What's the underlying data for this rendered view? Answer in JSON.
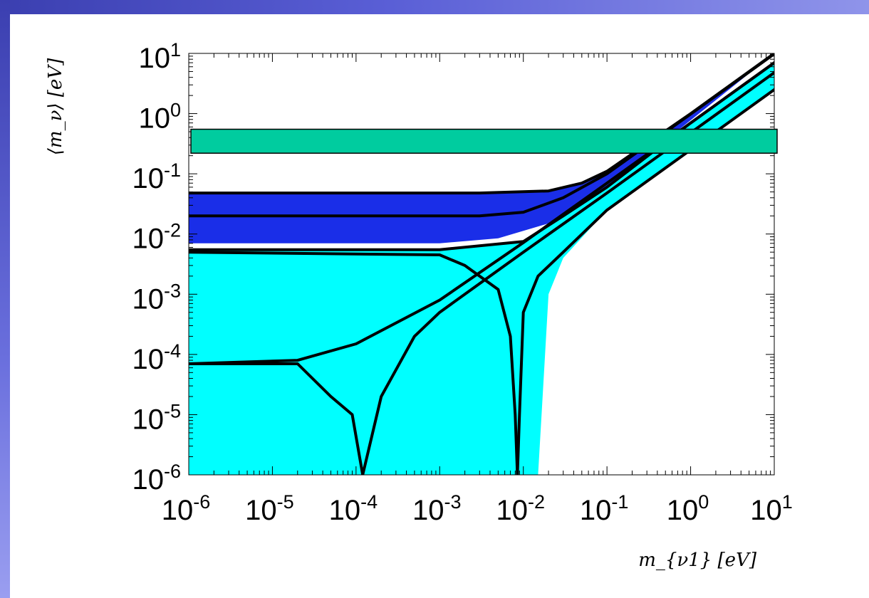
{
  "colors": {
    "light_band": "#00ffff",
    "dark_band": "#1a2ee8",
    "horizontal_bar": "#00cc9f",
    "curves": "#000000",
    "slide_accent": "#4a4fc8"
  },
  "chart_data": {
    "type": "area",
    "title": "",
    "xlabel": "m_{ν1} [eV]",
    "ylabel": "⟨m_ν⟩ [eV]",
    "xscale": "log",
    "yscale": "log",
    "xlim": [
      1e-06,
      10
    ],
    "ylim": [
      1e-06,
      10
    ],
    "x_tick_labels": [
      {
        "base": "10",
        "exp": "-6"
      },
      {
        "base": "10",
        "exp": "-5"
      },
      {
        "base": "10",
        "exp": "-4"
      },
      {
        "base": "10",
        "exp": "-3"
      },
      {
        "base": "10",
        "exp": "-2"
      },
      {
        "base": "10",
        "exp": "-1"
      },
      {
        "base": "10",
        "exp": "0"
      },
      {
        "base": "10",
        "exp": "1"
      }
    ],
    "y_tick_labels": [
      {
        "base": "10",
        "exp": "1"
      },
      {
        "base": "10",
        "exp": "0"
      },
      {
        "base": "10",
        "exp": "-1"
      },
      {
        "base": "10",
        "exp": "-2"
      },
      {
        "base": "10",
        "exp": "-3"
      },
      {
        "base": "10",
        "exp": "-4"
      },
      {
        "base": "10",
        "exp": "-5"
      },
      {
        "base": "10",
        "exp": "-6"
      }
    ],
    "grid": false,
    "legend": "none",
    "regions": [
      {
        "kind": "inverted hierarchy (dark blue band)",
        "color": "#1a2ee8",
        "upper": [
          [
            1e-06,
            0.048
          ],
          [
            0.003,
            0.048
          ],
          [
            0.02,
            0.052
          ],
          [
            0.05,
            0.07
          ],
          [
            0.1,
            0.11
          ],
          [
            0.3,
            0.31
          ],
          [
            1,
            1.0
          ],
          [
            10,
            10
          ]
        ],
        "lower": [
          [
            1e-06,
            0.007
          ],
          [
            0.001,
            0.007
          ],
          [
            0.005,
            0.0085
          ],
          [
            0.02,
            0.015
          ],
          [
            0.05,
            0.03
          ],
          [
            0.1,
            0.06
          ]
        ]
      },
      {
        "kind": "normal hierarchy (cyan band)",
        "color": "#00ffff",
        "upper": [
          [
            1e-06,
            0.0055
          ],
          [
            0.001,
            0.0055
          ],
          [
            0.01,
            0.0075
          ],
          [
            0.03,
            0.02
          ],
          [
            0.1,
            0.06
          ],
          [
            1,
            0.7
          ],
          [
            10,
            7
          ]
        ],
        "lower": [
          [
            1e-06,
            1e-06
          ],
          [
            0.015,
            1e-06
          ],
          [
            0.017,
            2e-05
          ],
          [
            0.02,
            0.001
          ],
          [
            0.03,
            0.004
          ],
          [
            0.1,
            0.025
          ],
          [
            1,
            0.25
          ],
          [
            10,
            2.5
          ]
        ]
      }
    ],
    "curves": [
      {
        "points": [
          [
            1e-06,
            0.048
          ],
          [
            0.003,
            0.048
          ],
          [
            0.02,
            0.052
          ],
          [
            0.05,
            0.07
          ],
          [
            0.1,
            0.11
          ],
          [
            1,
            1.0
          ],
          [
            10,
            10
          ]
        ]
      },
      {
        "points": [
          [
            1e-06,
            0.02
          ],
          [
            0.003,
            0.02
          ],
          [
            0.01,
            0.023
          ],
          [
            0.03,
            0.04
          ],
          [
            0.1,
            0.1
          ],
          [
            1,
            0.98
          ],
          [
            10,
            9.8
          ]
        ]
      },
      {
        "points": [
          [
            1e-06,
            0.0055
          ],
          [
            0.001,
            0.0055
          ],
          [
            0.01,
            0.0075
          ],
          [
            0.03,
            0.02
          ],
          [
            0.1,
            0.06
          ],
          [
            1,
            0.7
          ],
          [
            10,
            7
          ]
        ]
      },
      {
        "points": [
          [
            1e-06,
            0.005
          ],
          [
            0.001,
            0.0045
          ],
          [
            0.002,
            0.003
          ],
          [
            0.005,
            0.0012
          ],
          [
            0.007,
            0.0002
          ],
          [
            0.008,
            1e-05
          ],
          [
            0.0085,
            1e-06
          ]
        ]
      },
      {
        "points": [
          [
            1e-06,
            7e-05
          ],
          [
            2e-05,
            7e-05
          ],
          [
            5e-05,
            2e-05
          ],
          [
            9e-05,
            1e-05
          ],
          [
            0.00012,
            1e-06
          ]
        ]
      },
      {
        "points": [
          [
            1e-06,
            7e-05
          ],
          [
            2e-05,
            8e-05
          ],
          [
            0.0001,
            0.00015
          ],
          [
            0.001,
            0.0008
          ],
          [
            0.01,
            0.0072
          ],
          [
            0.1,
            0.07
          ],
          [
            1,
            0.7
          ],
          [
            10,
            7
          ]
        ]
      },
      {
        "points": [
          [
            0.00012,
            1e-06
          ],
          [
            0.0002,
            2e-05
          ],
          [
            0.0005,
            0.0002
          ],
          [
            0.001,
            0.0005
          ],
          [
            0.01,
            0.005
          ],
          [
            0.1,
            0.048
          ],
          [
            1,
            0.48
          ],
          [
            10,
            4.8
          ]
        ]
      },
      {
        "points": [
          [
            0.0085,
            1e-06
          ],
          [
            0.009,
            1e-05
          ],
          [
            0.01,
            0.0005
          ],
          [
            0.015,
            0.002
          ],
          [
            0.03,
            0.005
          ],
          [
            0.1,
            0.025
          ],
          [
            1,
            0.25
          ],
          [
            10,
            2.5
          ]
        ]
      }
    ],
    "bands_horizontal": [
      {
        "y_range": [
          0.22,
          0.55
        ],
        "color": "#00cc9f"
      }
    ]
  }
}
